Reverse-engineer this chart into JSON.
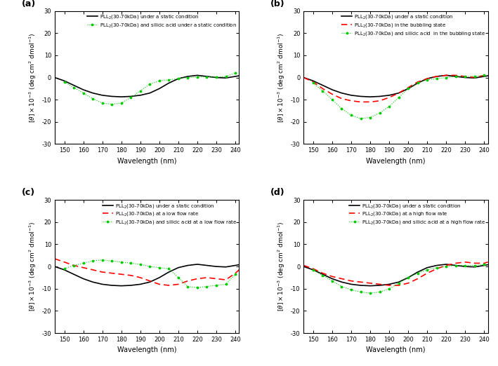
{
  "xlim": [
    145,
    242
  ],
  "ylim": [
    -30,
    30
  ],
  "xticks": [
    150,
    160,
    170,
    180,
    190,
    200,
    210,
    220,
    230,
    240
  ],
  "yticks": [
    -30,
    -20,
    -10,
    0,
    10,
    20,
    30
  ],
  "xlabel": "Wavelength (nm)",
  "panel_labels": [
    "(a)",
    "(b)",
    "(c)",
    "(d)"
  ],
  "legends": {
    "a": [
      "PLL2(30-70kDa) under a static condition",
      "PLL2(30-70kDa) and silicic acid under a static condition"
    ],
    "b": [
      "PLL2(30-70kDa) under a static condition",
      "PLL2(30-70kDa) in the bubbling state",
      "PLL2(30-70kDa) and silicic acid  in the bubbling state"
    ],
    "c": [
      "PLL2(30-70kDa) under a static condition",
      "PLL2(30-70kDa) at a low flow rate",
      "PLL2(30-70kDa) and silicic acid at a low flow rate"
    ],
    "d": [
      "PLL2(30-70kDa) under a static condition",
      "PLL2(30-70kDa) at a high flow rate",
      "PLL2(30-70kDa) and silicic acid at a high flow rate"
    ]
  },
  "colors": {
    "black": "#000000",
    "red": "#FF0000",
    "green": "#00CC00"
  },
  "static_x": [
    145,
    150,
    155,
    160,
    165,
    170,
    175,
    180,
    185,
    190,
    195,
    200,
    205,
    210,
    215,
    220,
    225,
    230,
    235,
    240,
    242
  ],
  "static_y": [
    0.0,
    -1.5,
    -3.5,
    -5.5,
    -7.0,
    -8.0,
    -8.5,
    -8.7,
    -8.5,
    -8.0,
    -7.0,
    -5.0,
    -2.5,
    -0.5,
    0.5,
    1.0,
    0.5,
    0.0,
    -0.2,
    0.5,
    0.8
  ],
  "static_silicic_a_x": [
    150,
    155,
    160,
    165,
    170,
    175,
    180,
    185,
    190,
    195,
    200,
    205,
    210,
    215,
    220,
    225,
    230,
    235,
    240
  ],
  "static_silicic_a_y": [
    -2.0,
    -4.5,
    -7.0,
    -9.5,
    -11.5,
    -12.0,
    -11.5,
    -9.0,
    -6.0,
    -3.0,
    -1.5,
    -1.0,
    -0.5,
    0.0,
    0.2,
    0.3,
    0.2,
    0.5,
    2.0
  ],
  "bubbling_x": [
    145,
    150,
    155,
    160,
    165,
    170,
    175,
    180,
    185,
    190,
    195,
    200,
    205,
    210,
    215,
    220,
    225,
    230,
    235,
    240,
    242
  ],
  "bubbling_y": [
    0.0,
    -2.0,
    -5.0,
    -7.5,
    -9.5,
    -10.5,
    -11.0,
    -11.0,
    -10.5,
    -9.0,
    -7.0,
    -4.5,
    -2.0,
    -0.5,
    0.5,
    1.0,
    1.0,
    0.5,
    0.0,
    1.0,
    1.5
  ],
  "bubbling_silicic_x": [
    150,
    155,
    160,
    165,
    170,
    175,
    180,
    185,
    190,
    195,
    200,
    205,
    210,
    215,
    220,
    225,
    230,
    235,
    240
  ],
  "bubbling_silicic_y": [
    -2.5,
    -6.0,
    -10.0,
    -14.0,
    -17.0,
    -18.5,
    -18.0,
    -16.0,
    -13.0,
    -9.0,
    -5.0,
    -2.5,
    -1.0,
    -0.5,
    0.0,
    0.5,
    0.5,
    0.5,
    1.0
  ],
  "low_flow_x": [
    145,
    150,
    155,
    160,
    165,
    170,
    175,
    180,
    185,
    190,
    195,
    200,
    205,
    210,
    215,
    220,
    225,
    230,
    235,
    240,
    242
  ],
  "low_flow_y": [
    3.5,
    2.0,
    0.5,
    -0.5,
    -1.5,
    -2.5,
    -3.0,
    -3.5,
    -4.0,
    -5.0,
    -6.5,
    -8.0,
    -8.5,
    -8.0,
    -6.5,
    -5.5,
    -5.0,
    -5.5,
    -6.0,
    -3.0,
    -1.5
  ],
  "low_flow_silicic_x": [
    150,
    155,
    160,
    165,
    170,
    175,
    180,
    185,
    190,
    195,
    200,
    205,
    210,
    215,
    220,
    225,
    230,
    235,
    240
  ],
  "low_flow_silicic_y": [
    -1.0,
    0.5,
    1.5,
    2.5,
    3.0,
    2.5,
    2.0,
    1.5,
    1.0,
    0.0,
    -0.5,
    -1.0,
    -5.0,
    -9.0,
    -9.5,
    -9.0,
    -8.5,
    -8.0,
    -3.5
  ],
  "high_flow_x": [
    145,
    150,
    155,
    160,
    165,
    170,
    175,
    180,
    185,
    190,
    195,
    200,
    205,
    210,
    215,
    220,
    225,
    230,
    235,
    240,
    242
  ],
  "high_flow_y": [
    0.5,
    -1.0,
    -3.0,
    -4.5,
    -5.5,
    -6.5,
    -7.0,
    -7.5,
    -8.0,
    -8.5,
    -8.5,
    -7.5,
    -5.5,
    -3.0,
    -1.0,
    0.5,
    1.5,
    2.0,
    1.5,
    1.5,
    2.0
  ],
  "high_flow_silicic_x": [
    150,
    155,
    160,
    165,
    170,
    175,
    180,
    185,
    190,
    195,
    200,
    205,
    210,
    215,
    220,
    225,
    230,
    235,
    240
  ],
  "high_flow_silicic_y": [
    -1.5,
    -4.0,
    -6.5,
    -9.0,
    -10.5,
    -11.5,
    -12.0,
    -11.5,
    -10.0,
    -7.5,
    -5.0,
    -3.0,
    -1.5,
    -0.5,
    0.0,
    0.5,
    0.5,
    0.5,
    1.0
  ]
}
